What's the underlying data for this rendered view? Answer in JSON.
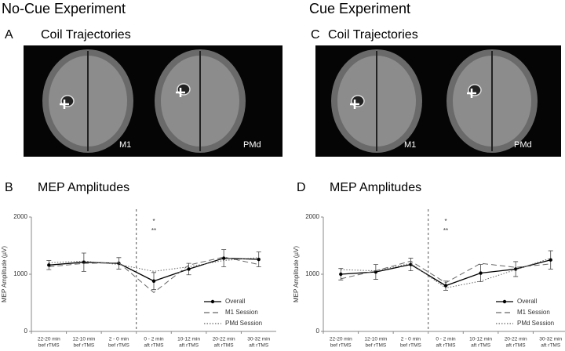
{
  "headings": [
    "No-Cue Experiment",
    "Cue Experiment"
  ],
  "panels": [
    {
      "letter": "A",
      "title": "Coil Trajectories",
      "images": [
        "M1",
        "PMd"
      ]
    },
    {
      "letter": "C",
      "title": "Coil Trajectories",
      "images": [
        "M1",
        "PMd"
      ]
    }
  ],
  "chart_data": [
    {
      "type": "line",
      "letter": "B",
      "title": "MEP Amplitudes",
      "y_label": "MEP Amplitude (µV)",
      "categories": [
        [
          "22-20 min",
          "bef rTMS"
        ],
        [
          "12-10 min",
          "bef rTMS"
        ],
        [
          "2 - 0 min",
          "bef rTMS"
        ],
        [
          "0 - 2  min",
          "aft rTMS"
        ],
        [
          "10-12 min",
          "aft rTMS"
        ],
        [
          "20-22 min",
          "aft rTMS"
        ],
        [
          "30-32 min",
          "aft rTMS"
        ]
      ],
      "ylim": [
        0,
        2000
      ],
      "yticks": [
        0,
        1000,
        2000
      ],
      "annotations": [
        "*",
        "**"
      ],
      "series": [
        {
          "name": "Overall",
          "color": "#000000",
          "dash": "solid",
          "markers": true,
          "values": [
            1160,
            1210,
            1190,
            880,
            1090,
            1280,
            1260
          ],
          "errors": [
            80,
            160,
            100,
            150,
            100,
            150,
            130
          ]
        },
        {
          "name": "M1 Session",
          "color": "#666666",
          "dash": "dashed",
          "markers": false,
          "values": [
            1130,
            1190,
            1200,
            680,
            1160,
            1300,
            1170
          ]
        },
        {
          "name": "PMd Session",
          "color": "#666666",
          "dash": "dotted",
          "markers": false,
          "values": [
            1200,
            1230,
            1170,
            1050,
            1130,
            1240,
            1290
          ]
        }
      ]
    },
    {
      "type": "line",
      "letter": "D",
      "title": "MEP Amplitudes",
      "y_label": "MEP Amplitude (µV)",
      "categories": [
        [
          "22-20 min",
          "bef rTMS"
        ],
        [
          "12-10 min",
          "bef rTMS"
        ],
        [
          "2 - 0 min",
          "bef rTMS"
        ],
        [
          "0 - 2  min",
          "aft rTMS"
        ],
        [
          "10-12 min",
          "aft rTMS"
        ],
        [
          "20-22 min",
          "aft rTMS"
        ],
        [
          "30-32 min",
          "aft rTMS"
        ]
      ],
      "ylim": [
        0,
        2000
      ],
      "yticks": [
        0,
        1000,
        2000
      ],
      "annotations": [
        "*",
        "**"
      ],
      "series": [
        {
          "name": "Overall",
          "color": "#000000",
          "dash": "solid",
          "markers": true,
          "values": [
            1000,
            1040,
            1170,
            800,
            1020,
            1090,
            1250
          ],
          "errors": [
            100,
            130,
            110,
            80,
            150,
            130,
            160
          ]
        },
        {
          "name": "M1 Session",
          "color": "#666666",
          "dash": "dashed",
          "markers": false,
          "values": [
            920,
            1060,
            1230,
            850,
            1190,
            1120,
            1180
          ]
        },
        {
          "name": "PMd Session",
          "color": "#666666",
          "dash": "dotted",
          "markers": false,
          "values": [
            1080,
            1060,
            1190,
            760,
            880,
            1080,
            1280
          ]
        }
      ]
    }
  ]
}
